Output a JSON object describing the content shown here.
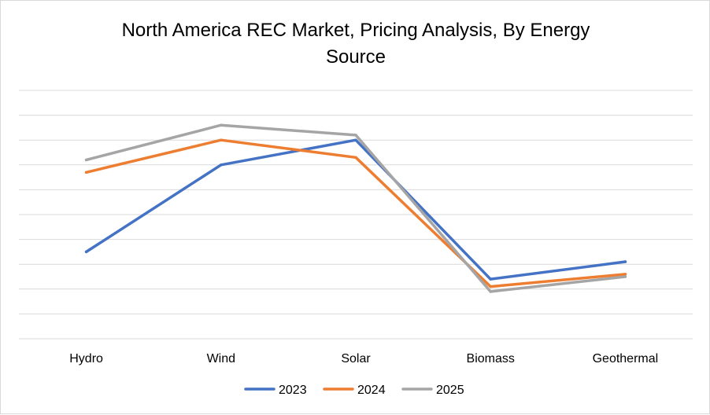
{
  "chart_data": {
    "type": "line",
    "title": "North America REC Market, Pricing Analysis, By Energy Source",
    "title_lines": [
      "North America REC Market, Pricing Analysis, By Energy",
      "Source"
    ],
    "categories": [
      "Hydro",
      "Wind",
      "Solar",
      "Biomass",
      "Geothermal"
    ],
    "series": [
      {
        "name": "2023",
        "color": "#4472c4",
        "values": [
          3.5,
          7.0,
          8.0,
          2.4,
          3.1
        ]
      },
      {
        "name": "2024",
        "color": "#ed7d31",
        "values": [
          6.7,
          8.0,
          7.3,
          2.1,
          2.6
        ]
      },
      {
        "name": "2025",
        "color": "#a5a5a5",
        "values": [
          7.2,
          8.6,
          8.2,
          1.9,
          2.5
        ]
      }
    ],
    "ylim": [
      0,
      10
    ],
    "gridlines": 10,
    "y_tick_labels_visible": false,
    "legend_position": "bottom",
    "xlabel": "",
    "ylabel": ""
  }
}
